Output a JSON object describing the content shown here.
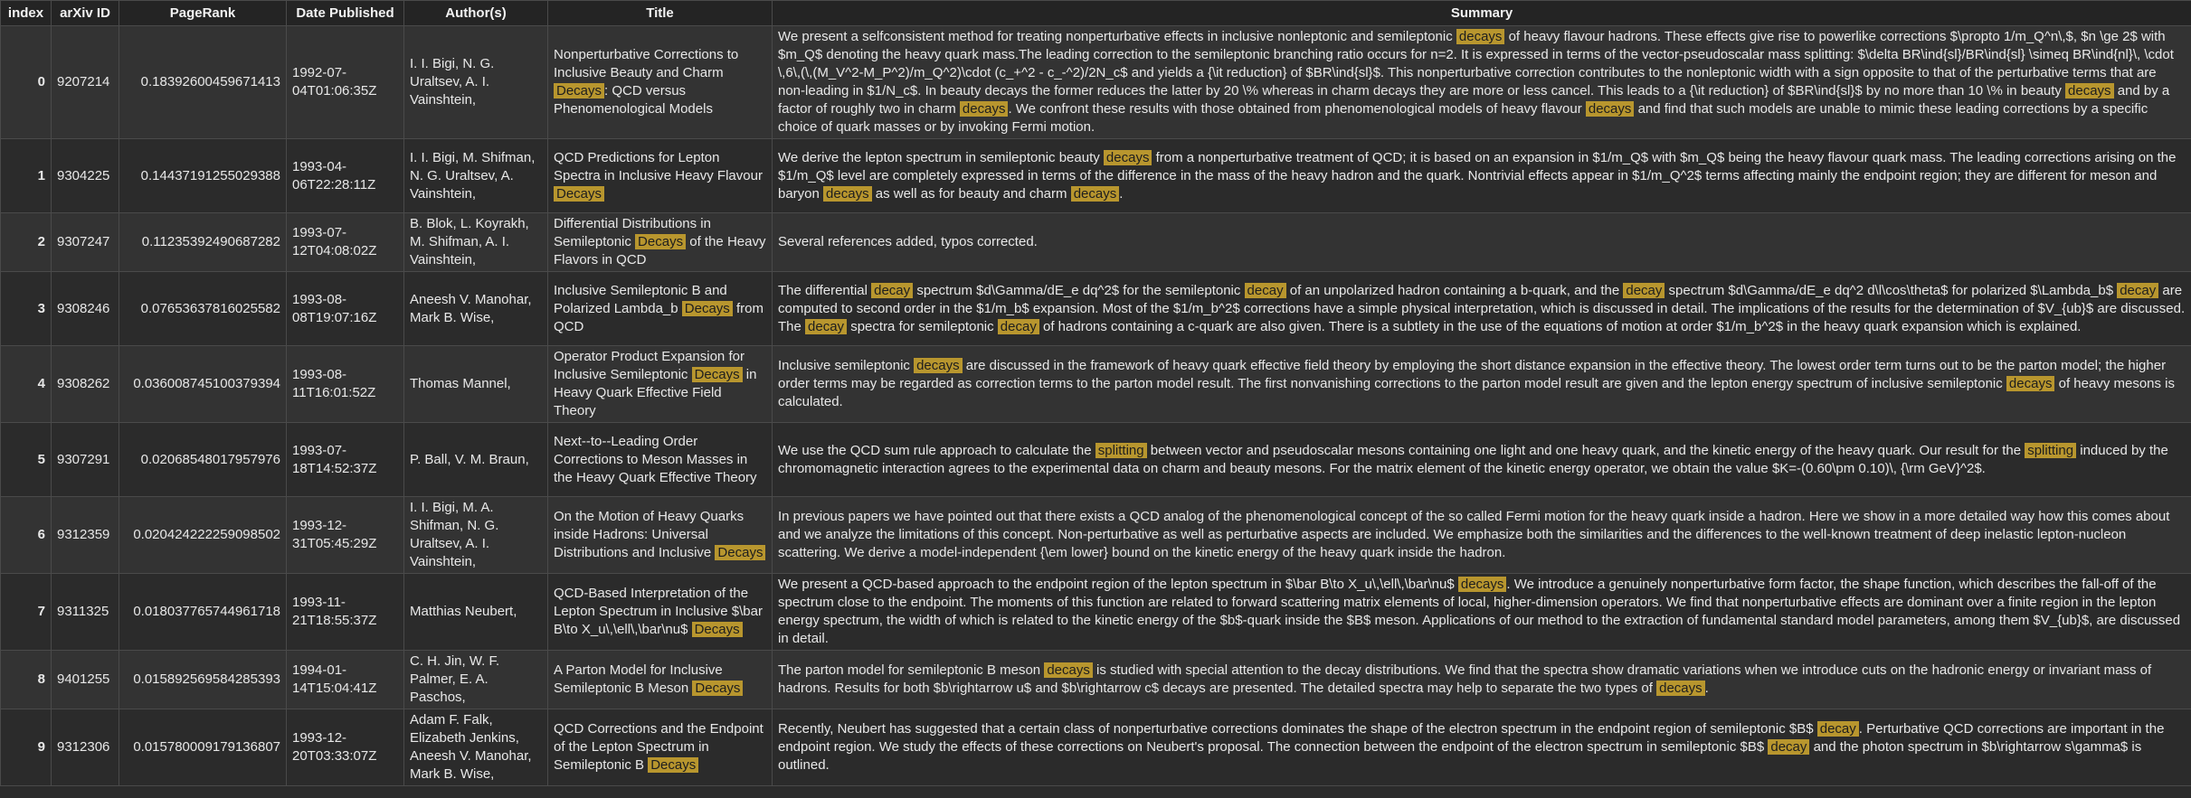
{
  "columns": [
    "index",
    "arXiv ID",
    "PageRank",
    "Date Published",
    "Author(s)",
    "Title",
    "Summary"
  ],
  "rows": [
    {
      "index": "0",
      "arxiv": "9207214",
      "pagerank": "0.18392600459671413",
      "date": "1992-07-04T01:06:35Z",
      "authors": "I. I. Bigi, N. G. Uraltsev, A. I. Vainshtein,",
      "title": "Nonperturbative Corrections to Inclusive Beauty and Charm [[Decays]]: QCD versus Phenomenological Models",
      "summary": "We present a selfconsistent method for treating nonperturbative effects in inclusive nonleptonic and semileptonic [[decays]] of heavy flavour hadrons. These effects give rise to powerlike corrections $\\propto 1/m_Q^n\\,$, $n \\ge 2$ with $m_Q$ denoting the heavy quark mass.The leading correction to the semileptonic branching ratio occurs for n=2. It is expressed in terms of the vector-pseudoscalar mass splitting: $\\delta BR\\ind{sl}/BR\\ind{sl} \\simeq BR\\ind{nl}\\, \\cdot \\,6\\,(\\,(M_V^2-M_P^2)/m_Q^2)\\cdot (c_+^2 - c_-^2)/2N_c$ and yields a {\\it reduction} of $BR\\ind{sl}$. This nonperturbative correction contributes to the nonleptonic width with a sign opposite to that of the perturbative terms that are non-leading in $1/N_c$. In beauty decays the former reduces the latter by 20 \\% whereas in charm decays they are more or less cancel. This leads to a {\\it reduction} of $BR\\ind{sl}$ by no more than 10 \\% in beauty [[decays]] and by a factor of roughly two in charm [[decays]]. We confront these results with those obtained from phenomenological models of heavy flavour [[decays]] and find that such models are unable to mimic these leading corrections by a specific choice of quark masses or by invoking Fermi motion."
    },
    {
      "index": "1",
      "arxiv": "9304225",
      "pagerank": "0.14437191255029388",
      "date": "1993-04-06T22:28:11Z",
      "authors": "I. I. Bigi, M. Shifman, N. G. Uraltsev, A. Vainshtein,",
      "title": "QCD Predictions for Lepton Spectra in Inclusive Heavy Flavour [[Decays]]",
      "summary": "We derive the lepton spectrum in semileptonic beauty [[decays]] from a nonperturbative treatment of QCD; it is based on an expansion in $1/m_Q$ with $m_Q$ being the heavy flavour quark mass. The leading corrections arising on the $1/m_Q$ level are completely expressed in terms of the difference in the mass of the heavy hadron and the quark. Nontrivial effects appear in $1/m_Q^2$ terms affecting mainly the endpoint region; they are different for meson and baryon [[decays]] as well as for beauty and charm [[decays]]."
    },
    {
      "index": "2",
      "arxiv": "9307247",
      "pagerank": "0.11235392490687282",
      "date": "1993-07-12T04:08:02Z",
      "authors": "B. Blok, L. Koyrakh, M. Shifman, A. I. Vainshtein,",
      "title": "Differential Distributions in Semileptonic [[Decays]] of the Heavy Flavors in QCD",
      "summary": "Several references added, typos corrected."
    },
    {
      "index": "3",
      "arxiv": "9308246",
      "pagerank": "0.07653637816025582",
      "date": "1993-08-08T19:07:16Z",
      "authors": "Aneesh V. Manohar, Mark B. Wise,",
      "title": "Inclusive Semileptonic B and Polarized Lambda_b [[Decays]] from QCD",
      "summary": "The differential [[decay]] spectrum $d\\Gamma/dE_e dq^2$ for the semileptonic [[decay]] of an unpolarized hadron containing a b-quark, and the [[decay]] spectrum $d\\Gamma/dE_e dq^2 d\\l\\cos\\theta$ for polarized $\\Lambda_b$ [[decay]] are computed to second order in the $1/m_b$ expansion. Most of the $1/m_b^2$ corrections have a simple physical interpretation, which is discussed in detail. The implications of the results for the determination of $V_{ub}$ are discussed. The [[decay]] spectra for semileptonic [[decay]] of hadrons containing a c-quark are also given. There is a subtlety in the use of the equations of motion at order $1/m_b^2$ in the heavy quark expansion which is explained."
    },
    {
      "index": "4",
      "arxiv": "9308262",
      "pagerank": "0.036008745100379394",
      "date": "1993-08-11T16:01:52Z",
      "authors": "Thomas Mannel,",
      "title": "Operator Product Expansion for Inclusive Semileptonic [[Decays]] in Heavy Quark Effective Field Theory",
      "summary": "Inclusive semileptonic [[decays]] are discussed in the framework of heavy quark effective field theory by employing the short distance expansion in the effective theory. The lowest order term turns out to be the parton model; the higher order terms may be regarded as correction terms to the parton model result. The first nonvanishing corrections to the parton model result are given and the lepton energy spectrum of inclusive semileptonic [[decays]] of heavy mesons is calculated."
    },
    {
      "index": "5",
      "arxiv": "9307291",
      "pagerank": "0.02068548017957976",
      "date": "1993-07-18T14:52:37Z",
      "authors": "P. Ball, V. M. Braun,",
      "title": "Next--to--Leading Order Corrections to Meson Masses in the Heavy Quark Effective Theory",
      "summary": "We use the QCD sum rule approach to calculate the [[splitting]] between vector and pseudoscalar mesons containing one light and one heavy quark, and the kinetic energy of the heavy quark. Our result for the [[splitting]] induced by the chromomagnetic interaction agrees to the experimental data on charm and beauty mesons. For the matrix element of the kinetic energy operator, we obtain the value $K=-(0.60\\pm 0.10)\\, {\\rm GeV}^2$."
    },
    {
      "index": "6",
      "arxiv": "9312359",
      "pagerank": "0.020424222259098502",
      "date": "1993-12-31T05:45:29Z",
      "authors": "I. I. Bigi, M. A. Shifman, N. G. Uraltsev, A. I. Vainshtein,",
      "title": "On the Motion of Heavy Quarks inside Hadrons: Universal Distributions and Inclusive [[Decays]]",
      "summary": "In previous papers we have pointed out that there exists a QCD analog of the phenomenological concept of the so called Fermi motion for the heavy quark inside a hadron. Here we show in a more detailed way how this comes about and we analyze the limitations of this concept. Non-perturbative as well as perturbative aspects are included. We emphasize both the similarities and the differences to the well-known treatment of deep inelastic lepton-nucleon scattering. We derive a model-independent {\\em lower} bound on the kinetic energy of the heavy quark inside the hadron."
    },
    {
      "index": "7",
      "arxiv": "9311325",
      "pagerank": "0.018037765744961718",
      "date": "1993-11-21T18:55:37Z",
      "authors": "Matthias Neubert,",
      "title": "QCD-Based Interpretation of the Lepton Spectrum in Inclusive $\\bar B\\to X_u\\,\\ell\\,\\bar\\nu$ [[Decays]]",
      "summary": "We present a QCD-based approach to the endpoint region of the lepton spectrum in $\\bar B\\to X_u\\,\\ell\\,\\bar\\nu$ [[decays]]. We introduce a genuinely nonperturbative form factor, the shape function, which describes the fall-off of the spectrum close to the endpoint. The moments of this function are related to forward scattering matrix elements of local, higher-dimension operators. We find that nonperturbative effects are dominant over a finite region in the lepton energy spectrum, the width of which is related to the kinetic energy of the $b$-quark inside the $B$ meson. Applications of our method to the extraction of fundamental standard model parameters, among them $V_{ub}$, are discussed in detail."
    },
    {
      "index": "8",
      "arxiv": "9401255",
      "pagerank": "0.015892569584285393",
      "date": "1994-01-14T15:04:41Z",
      "authors": "C. H. Jin, W. F. Palmer, E. A. Paschos,",
      "title": "A Parton Model for Inclusive Semileptonic B Meson [[Decays]]",
      "summary": "The parton model for semileptonic B meson [[decays]] is studied with special attention to the decay distributions. We find that the spectra show dramatic variations when we introduce cuts on the hadronic energy or invariant mass of hadrons. Results for both $b\\rightarrow u$ and $b\\rightarrow c$ decays are presented. The detailed spectra may help to separate the two types of [[decays]]."
    },
    {
      "index": "9",
      "arxiv": "9312306",
      "pagerank": "0.015780009179136807",
      "date": "1993-12-20T03:33:07Z",
      "authors": "Adam F. Falk, Elizabeth Jenkins, Aneesh V. Manohar, Mark B. Wise,",
      "title": "QCD Corrections and the Endpoint of the Lepton Spectrum in Semileptonic B [[Decays]]",
      "summary": "Recently, Neubert has suggested that a certain class of nonperturbative corrections dominates the shape of the electron spectrum in the endpoint region of semileptonic $B$ [[decay]]. Perturbative QCD corrections are important in the endpoint region. We study the effects of these corrections on Neubert's proposal. The connection between the endpoint of the electron spectrum in semileptonic $B$ [[decay]] and the photon spectrum in $b\\rightarrow s\\gamma$ is outlined."
    }
  ]
}
